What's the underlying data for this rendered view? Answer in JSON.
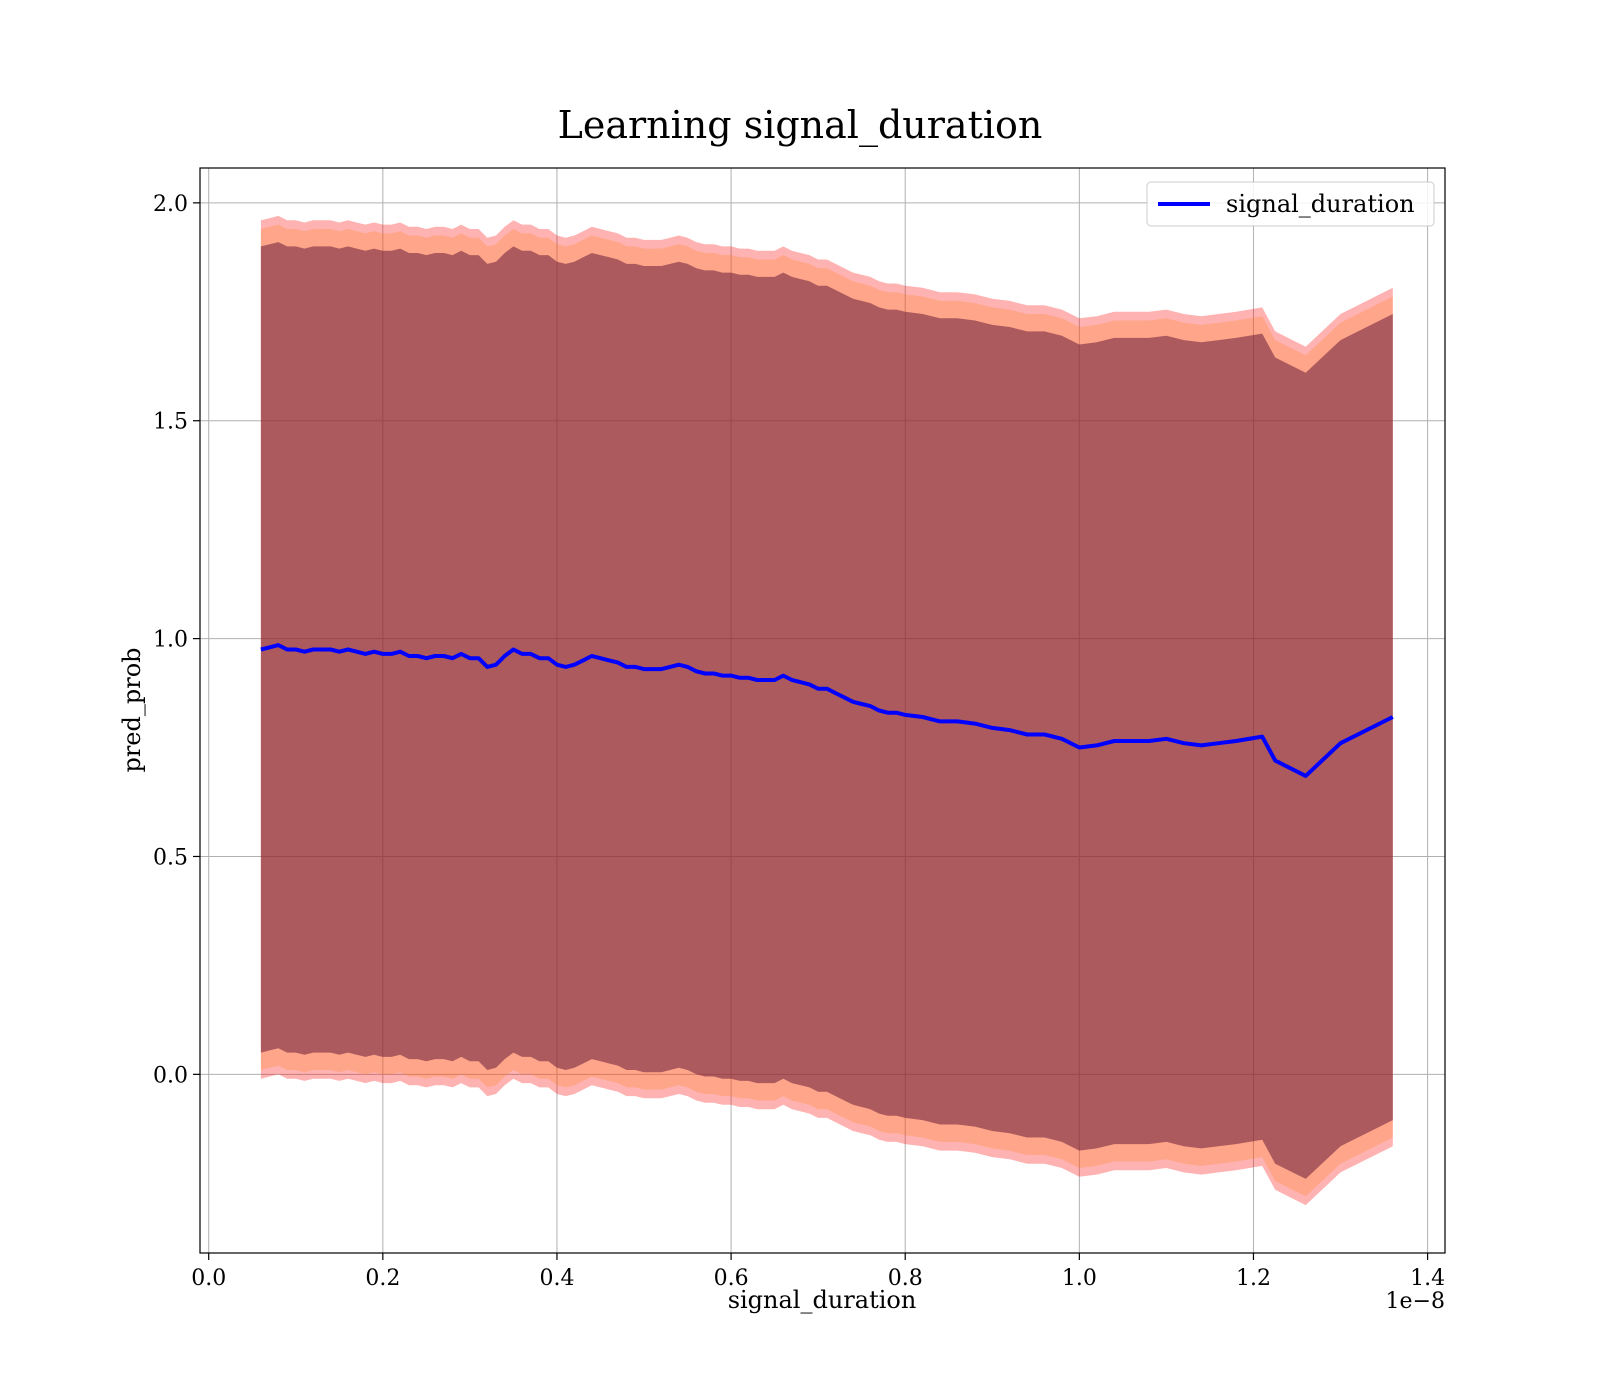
{
  "chart_data": {
    "type": "line",
    "title": "Learning signal_duration",
    "xlabel": "signal_duration",
    "ylabel": "pred_prob",
    "x_offset_text": "1e−8",
    "x_ticks": [
      "0.0",
      "0.2",
      "0.4",
      "0.6",
      "0.8",
      "1.0",
      "1.2",
      "1.4"
    ],
    "y_ticks": [
      "0.0",
      "0.5",
      "1.0",
      "1.5",
      "2.0"
    ],
    "xlim": [
      -0.01,
      1.42
    ],
    "ylim": [
      -0.41,
      2.08
    ],
    "grid": true,
    "legend_position": "top-right",
    "series": [
      {
        "name": "signal_duration",
        "color": "#0000ff",
        "x": [
          0.06,
          0.07,
          0.08,
          0.09,
          0.1,
          0.11,
          0.12,
          0.13,
          0.14,
          0.15,
          0.16,
          0.17,
          0.18,
          0.19,
          0.2,
          0.21,
          0.22,
          0.23,
          0.24,
          0.25,
          0.26,
          0.27,
          0.28,
          0.29,
          0.3,
          0.31,
          0.32,
          0.33,
          0.34,
          0.35,
          0.36,
          0.37,
          0.38,
          0.39,
          0.4,
          0.41,
          0.42,
          0.43,
          0.44,
          0.45,
          0.46,
          0.47,
          0.48,
          0.49,
          0.5,
          0.51,
          0.52,
          0.53,
          0.54,
          0.55,
          0.56,
          0.57,
          0.58,
          0.59,
          0.6,
          0.61,
          0.62,
          0.63,
          0.64,
          0.65,
          0.66,
          0.67,
          0.68,
          0.69,
          0.7,
          0.71,
          0.72,
          0.73,
          0.74,
          0.75,
          0.76,
          0.77,
          0.78,
          0.79,
          0.8,
          0.82,
          0.84,
          0.86,
          0.88,
          0.9,
          0.92,
          0.94,
          0.96,
          0.98,
          1.0,
          1.02,
          1.04,
          1.06,
          1.08,
          1.1,
          1.12,
          1.14,
          1.16,
          1.18,
          1.21,
          1.225,
          1.26,
          1.3,
          1.36
        ],
        "y": [
          0.975,
          0.98,
          0.985,
          0.975,
          0.975,
          0.97,
          0.975,
          0.975,
          0.975,
          0.97,
          0.975,
          0.97,
          0.965,
          0.97,
          0.965,
          0.965,
          0.97,
          0.96,
          0.96,
          0.955,
          0.96,
          0.96,
          0.955,
          0.965,
          0.955,
          0.955,
          0.935,
          0.94,
          0.96,
          0.975,
          0.965,
          0.965,
          0.955,
          0.955,
          0.94,
          0.935,
          0.94,
          0.95,
          0.96,
          0.955,
          0.95,
          0.945,
          0.935,
          0.935,
          0.93,
          0.93,
          0.93,
          0.935,
          0.94,
          0.935,
          0.925,
          0.92,
          0.92,
          0.915,
          0.915,
          0.91,
          0.91,
          0.905,
          0.905,
          0.905,
          0.915,
          0.905,
          0.9,
          0.895,
          0.885,
          0.885,
          0.875,
          0.865,
          0.855,
          0.85,
          0.845,
          0.835,
          0.83,
          0.83,
          0.825,
          0.82,
          0.81,
          0.81,
          0.805,
          0.795,
          0.79,
          0.78,
          0.78,
          0.77,
          0.75,
          0.755,
          0.765,
          0.765,
          0.765,
          0.77,
          0.76,
          0.755,
          0.76,
          0.765,
          0.775,
          0.72,
          0.685,
          0.76,
          0.82
        ]
      }
    ],
    "bands": [
      {
        "color": "#ff0000",
        "opacity": 0.3,
        "offset_upper": 0.985,
        "offset_lower": 0.985
      },
      {
        "color": "#ff7f0e",
        "opacity": 0.25,
        "offset_upper": 0.965,
        "offset_lower": 0.965
      },
      {
        "color": "#6a1e3a",
        "opacity": 0.55,
        "offset_upper": 0.925,
        "offset_lower": 0.925
      }
    ]
  }
}
